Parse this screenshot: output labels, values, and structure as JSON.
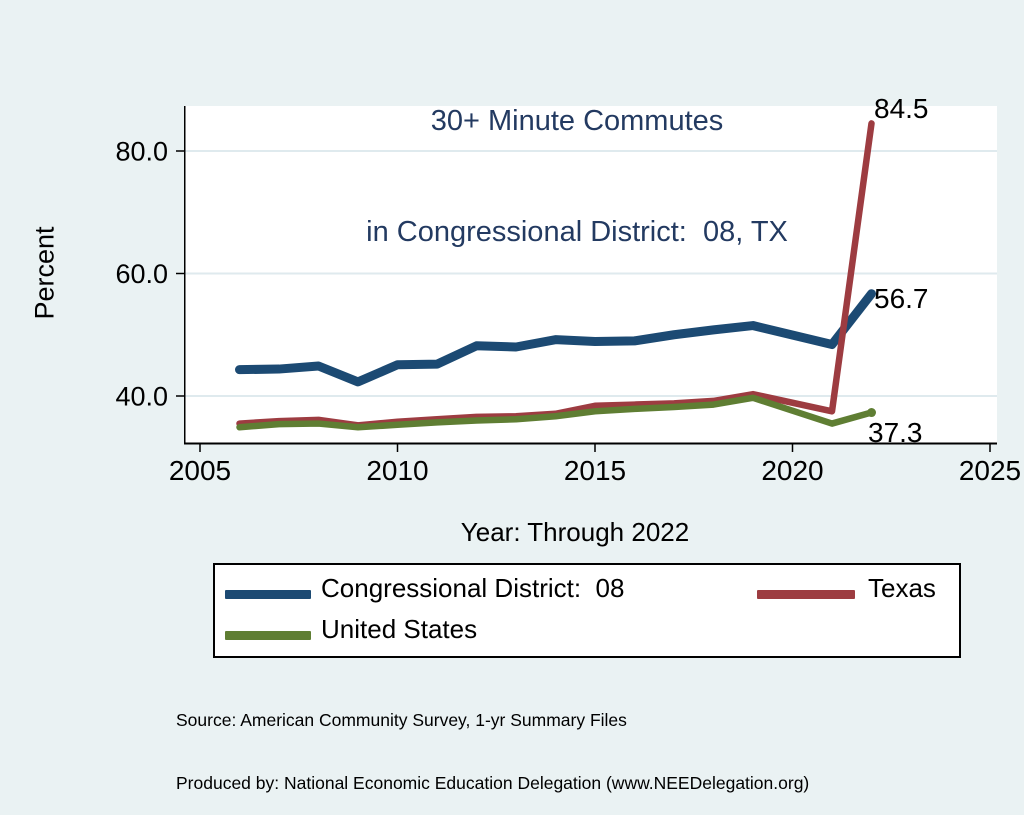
{
  "title": {
    "line1": "30+ Minute Commutes",
    "line2": "in Congressional District:  08, TX"
  },
  "axes": {
    "y_title": "Percent",
    "x_title": "Year: Through 2022"
  },
  "end_labels": {
    "texas": "84.5",
    "district": "56.7",
    "us": "37.3"
  },
  "legend": {
    "items": [
      {
        "label": "Congressional District:  08",
        "color": "#1c4a73"
      },
      {
        "label": "Texas",
        "color": "#9d3c41"
      },
      {
        "label": "United States",
        "color": "#5f7e33"
      }
    ]
  },
  "footer": {
    "line1": "Source: American Community Survey, 1-yr Summary Files",
    "line2": "Produced by: National Economic Education Delegation (www.NEEDelegation.org)"
  },
  "colors": {
    "background": "#eaf2f3",
    "plot_background": "#ffffff",
    "grid": "#dfeaee",
    "axis": "#000000",
    "title": "#233a61"
  },
  "chart_data": {
    "type": "line",
    "title": "30+ Minute Commutes in Congressional District: 08, TX",
    "xlabel": "Year: Through 2022",
    "ylabel": "Percent",
    "xlim": [
      2005,
      2025
    ],
    "ylim": [
      32.3,
      87.2
    ],
    "x_ticks": [
      2005,
      2010,
      2015,
      2020,
      2025
    ],
    "x_tick_labels": [
      "2005",
      "2010",
      "2015",
      "2020",
      "2025"
    ],
    "y_ticks": [
      40,
      60,
      80
    ],
    "y_tick_labels": [
      "40.0",
      "60.0",
      "80.0"
    ],
    "grid": "horizontal gridlines on",
    "legend_position": "below plot, boxed",
    "note": "no data point for 2020 (line drawn continuously 2019 to 2021)",
    "x": [
      2006,
      2007,
      2008,
      2009,
      2010,
      2011,
      2012,
      2013,
      2014,
      2015,
      2016,
      2017,
      2018,
      2019,
      2021,
      2022
    ],
    "series": [
      {
        "name": "Congressional District:  08",
        "color": "#1c4a73",
        "stroke_width": 9,
        "values": [
          44.3,
          44.4,
          44.9,
          42.3,
          45.1,
          45.2,
          48.2,
          48.0,
          49.2,
          48.9,
          49.0,
          50.0,
          50.8,
          51.5,
          48.4,
          56.7
        ],
        "end_label": "56.7"
      },
      {
        "name": "Texas",
        "color": "#9d3c41",
        "stroke_width": 6.5,
        "values": [
          35.5,
          35.9,
          36.1,
          35.2,
          35.8,
          36.2,
          36.6,
          36.7,
          37.1,
          38.4,
          38.6,
          38.8,
          39.2,
          40.3,
          37.5,
          84.5
        ],
        "end_label": "84.5"
      },
      {
        "name": "United States",
        "color": "#5f7e33",
        "stroke_width": 6.5,
        "values": [
          34.9,
          35.4,
          35.5,
          34.9,
          35.3,
          35.7,
          36.0,
          36.2,
          36.7,
          37.5,
          37.9,
          38.2,
          38.6,
          39.7,
          35.5,
          37.3
        ],
        "end_label": "37.3",
        "end_marker": true
      }
    ]
  }
}
